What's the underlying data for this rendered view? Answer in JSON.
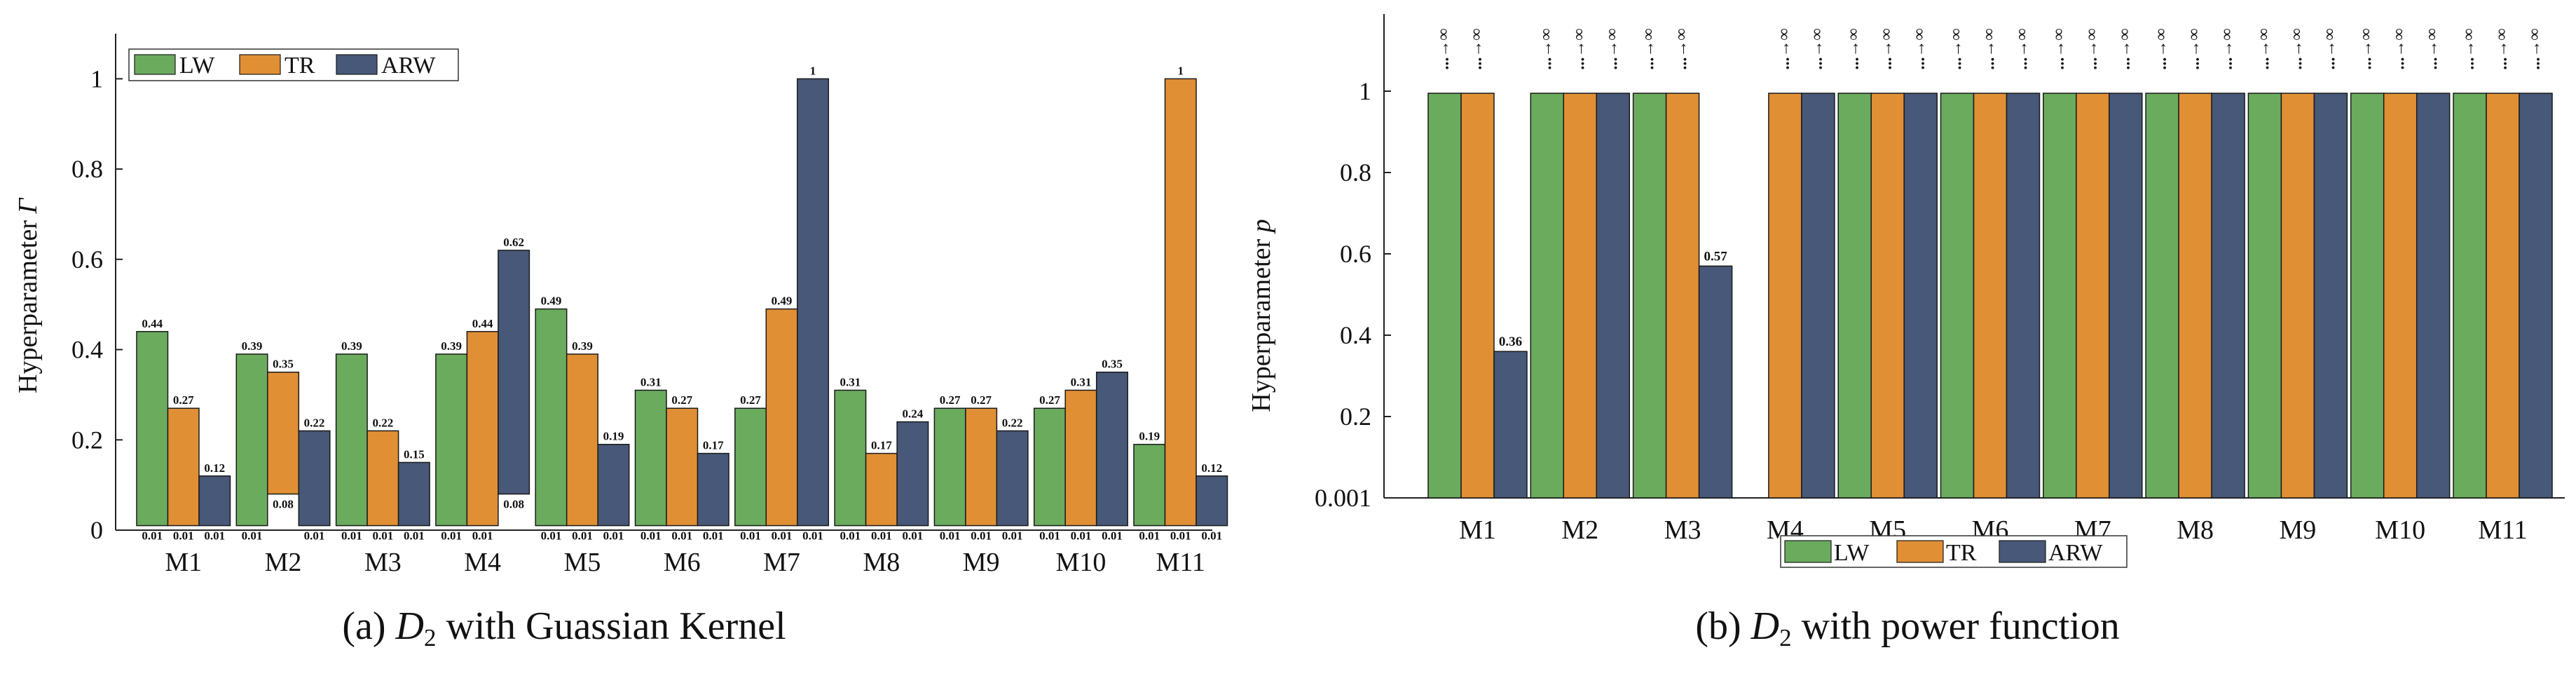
{
  "colors": {
    "LW": "#6aab5e",
    "TR": "#e08f35",
    "ARW": "#475878",
    "axis": "#222222"
  },
  "chart_data": [
    {
      "type": "bar",
      "caption": "(a) D₂ with Guassian Kernel",
      "ylabel": "Hyperparameter Γ",
      "ylim": [
        0,
        1.1
      ],
      "yticks": [
        "0",
        "0.2",
        "0.4",
        "0.6",
        "0.8",
        "1"
      ],
      "yticks_values": [
        0,
        0.2,
        0.4,
        0.6,
        0.8,
        1
      ],
      "legend_position": "top-left",
      "categories": [
        "M1",
        "M2",
        "M3",
        "M4",
        "M5",
        "M6",
        "M7",
        "M8",
        "M9",
        "M10",
        "M11"
      ],
      "series": [
        {
          "name": "LW",
          "values": [
            0.44,
            0.39,
            0.39,
            0.39,
            0.49,
            0.31,
            0.27,
            0.31,
            0.27,
            0.27,
            0.19
          ],
          "top_labels": [
            "0.44",
            "0.39",
            "0.39",
            "0.39",
            "0.49",
            "0.31",
            "0.27",
            "0.31",
            "0.27",
            "0.27",
            "0.19"
          ],
          "bottom_values": [
            0.01,
            0.01,
            0.01,
            0.01,
            0.01,
            0.01,
            0.01,
            0.01,
            0.01,
            0.01,
            0.01
          ],
          "bottom_labels": [
            "0.01",
            "0.01",
            "0.01",
            "0.01",
            "0.01",
            "0.01",
            "0.01",
            "0.01",
            "0.01",
            "0.01",
            "0.01"
          ]
        },
        {
          "name": "TR",
          "values": [
            0.27,
            0.35,
            0.22,
            0.44,
            0.39,
            0.27,
            0.49,
            0.17,
            0.27,
            0.31,
            1
          ],
          "top_labels": [
            "0.27",
            "0.35",
            "0.22",
            "0.44",
            "0.39",
            "0.27",
            "0.49",
            "0.17",
            "0.27",
            "0.31",
            "1"
          ],
          "bottom_values": [
            0.01,
            0.08,
            0.01,
            0.01,
            0.01,
            0.01,
            0.01,
            0.01,
            0.01,
            0.01,
            0.01
          ],
          "bottom_labels": [
            "0.01",
            "0.08",
            "0.01",
            "0.01",
            "0.01",
            "0.01",
            "0.01",
            "0.01",
            "0.01",
            "0.01",
            "0.01"
          ]
        },
        {
          "name": "ARW",
          "values": [
            0.12,
            0.22,
            0.15,
            0.62,
            0.19,
            0.17,
            1,
            0.24,
            0.22,
            0.35,
            0.12
          ],
          "top_labels": [
            "0.12",
            "0.22",
            "0.15",
            "0.62",
            "0.19",
            "0.17",
            "1",
            "0.24",
            "0.22",
            "0.35",
            "0.12"
          ],
          "bottom_values": [
            0.01,
            0.01,
            0.01,
            0.08,
            0.01,
            0.01,
            0.01,
            0.01,
            0.01,
            0.01,
            0.01
          ],
          "bottom_labels": [
            "0.01",
            "0.01",
            "0.01",
            "0.08",
            "0.01",
            "0.01",
            "0.01",
            "0.01",
            "0.01",
            "0.01",
            "0.01"
          ]
        }
      ]
    },
    {
      "type": "bar",
      "caption": "(b) D₂ with power function",
      "ylabel": "Hyperparameter p",
      "ylim": [
        0,
        1
      ],
      "yticks": [
        "0.001",
        "0.2",
        "0.4",
        "0.6",
        "0.8",
        "1"
      ],
      "yticks_values": [
        0,
        0.2,
        0.4,
        0.6,
        0.8,
        1
      ],
      "legend_position": "bottom-center",
      "categories": [
        "M1",
        "M2",
        "M3",
        "M4",
        "M5",
        "M6",
        "M7",
        "M8",
        "M9",
        "M10",
        "M11"
      ],
      "series": [
        {
          "name": "LW",
          "values": [
            "∞",
            "∞",
            "∞",
            null,
            "∞",
            "∞",
            "∞",
            "∞",
            "∞",
            "∞",
            "∞"
          ],
          "top_labels": [
            "...→∞",
            "...→∞",
            "...→∞",
            "",
            "...→∞",
            "...→∞",
            "...→∞",
            "...→∞",
            "...→∞",
            "...→∞",
            "...→∞"
          ]
        },
        {
          "name": "TR",
          "values": [
            "∞",
            "∞",
            "∞",
            "∞",
            "∞",
            "∞",
            "∞",
            "∞",
            "∞",
            "∞",
            "∞"
          ],
          "top_labels": [
            "...→∞",
            "...→∞",
            "...→∞",
            "...→∞",
            "...→∞",
            "...→∞",
            "...→∞",
            "...→∞",
            "...→∞",
            "...→∞",
            "...→∞"
          ]
        },
        {
          "name": "ARW",
          "values": [
            0.36,
            "∞",
            0.57,
            "∞",
            "∞",
            "∞",
            "∞",
            "∞",
            "∞",
            "∞",
            "∞"
          ],
          "top_labels": [
            "0.36",
            "...→∞",
            "0.57",
            "...→∞",
            "...→∞",
            "...→∞",
            "...→∞",
            "...→∞",
            "...→∞",
            "...→∞",
            "...→∞"
          ]
        }
      ]
    }
  ]
}
